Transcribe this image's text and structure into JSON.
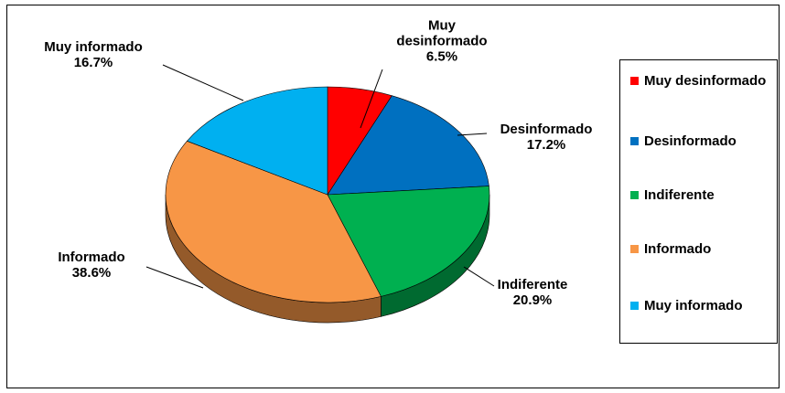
{
  "chart_data": {
    "type": "pie",
    "categories": [
      "Muy desinformado",
      "Desinformado",
      "Indiferente",
      "Informado",
      "Muy informado"
    ],
    "values": [
      6.5,
      17.2,
      20.9,
      38.6,
      16.7
    ],
    "value_labels": [
      "6.5%",
      "17.2%",
      "20.9%",
      "38.6%",
      "16.7%"
    ],
    "colors": [
      "#ff0000",
      "#0070c0",
      "#00b050",
      "#f79646",
      "#00b0f0"
    ],
    "legend": "right"
  }
}
